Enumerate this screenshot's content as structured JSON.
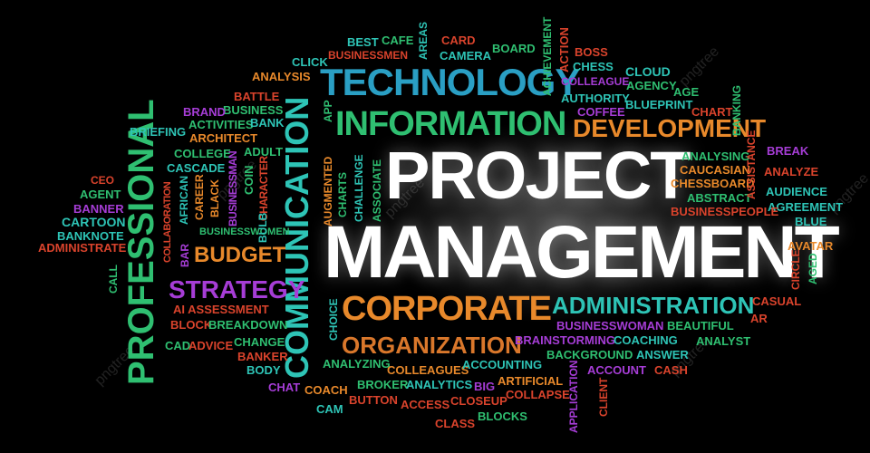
{
  "colors": {
    "background": "#000000",
    "teal": "#2ec4b6",
    "green": "#2fbf71",
    "orange": "#e8892b",
    "red": "#d9432c",
    "purple": "#a63dd6",
    "blue": "#3a8bd8",
    "white": "#ffffff"
  },
  "watermark": "pngtree",
  "words": {
    "project": "PROJECT",
    "management": "MANAGEMENT",
    "technology": "TECHNOLOGY",
    "information": "INFORMATION",
    "development": "DEVELOPMENT",
    "corporate": "CORPORATE",
    "administration": "ADMINISTRATION",
    "organization": "ORGANIZATION",
    "professional": "PROFESSIONAL",
    "communication": "COMMUNICATION",
    "strategy": "STRATEGY",
    "budget": "BUDGET",
    "best": "BEST",
    "cafe": "CAFE",
    "areas": "AREAS",
    "card": "CARD",
    "board": "BOARD",
    "businessmen": "BUSINESSMEN",
    "camera": "CAMERA",
    "achievement": "ACHIEVEMENT",
    "action": "ACTION",
    "boss": "BOSS",
    "chess": "CHESS",
    "click": "CLICK",
    "analysis": "ANALYSIS",
    "cloud": "CLOUD",
    "agency": "AGENCY",
    "colleague": "COLLEAGUE",
    "authority": "AUTHORITY",
    "age": "AGE",
    "coffee": "COFFEE",
    "blueprint": "BLUEPRINT",
    "banking": "BANKING",
    "chart": "CHART",
    "battle": "BATTLE",
    "business": "BUSINESS",
    "brand": "BRAND",
    "activities": "ACTIVITIES",
    "bank": "BANK",
    "app": "APP",
    "briefing": "BRIEFING",
    "architect": "ARCHITECT",
    "college": "COLLEGE",
    "adult": "ADULT",
    "cascade": "CASCADE",
    "businessman": "BUSINESSMAN",
    "coin": "COIN",
    "character": "CHARACTER",
    "african": "AFRICAN",
    "career": "CAREER",
    "black": "BLACK",
    "businesswomen": "BUSINESSWOMEN",
    "bulb": "BULB",
    "collaboration": "COLLABORATION",
    "bar": "BAR",
    "augmented": "AUGMENTED",
    "charts": "CHARTS",
    "challenge": "CHALLENGE",
    "associate": "ASSOCIATE",
    "ceo": "CEO",
    "agent": "AGENT",
    "banner": "BANNER",
    "cartoon": "CARTOON",
    "banknote": "BANKNOTE",
    "administrate": "ADMINISTRATE",
    "call": "CALL",
    "ai_assessment": "AI ASSESSMENT",
    "block": "BLOCK",
    "breakdown": "BREAKDOWN",
    "cad": "CAD",
    "advice": "ADVICE",
    "change": "CHANGE",
    "banker": "BANKER",
    "body": "BODY",
    "chat": "CHAT",
    "coach": "COACH",
    "cam": "CAM",
    "button": "BUTTON",
    "access": "ACCESS",
    "closeup": "CLOSEUP",
    "class": "CLASS",
    "blocks": "BLOCKS",
    "choice": "CHOICE",
    "analyzing": "ANALYZING",
    "colleagues": "COLLEAGUES",
    "broker": "BROKER",
    "analytics": "ANALYTICS",
    "big": "BIG",
    "artificial": "ARTIFICIAL",
    "collapse": "COLLAPSE",
    "accounting": "ACCOUNTING",
    "application": "APPLICATION",
    "client": "CLIENT",
    "account": "ACCOUNT",
    "answer": "ANSWER",
    "cash": "CASH",
    "background": "BACKGROUND",
    "brainstorming": "BRAINSTORMING",
    "coaching": "COACHING",
    "analyst": "ANALYST",
    "businesswoman": "BUSINESSWOMAN",
    "beautiful": "BEAUTIFUL",
    "casual": "CASUAL",
    "ar": "AR",
    "avatar": "AVATAR",
    "circle": "CIRCLE",
    "aged": "AGED",
    "break": "BREAK",
    "analyze": "ANALYZE",
    "audience": "AUDIENCE",
    "agreement": "AGREEMENT",
    "blue": "BLUE",
    "analysing": "ANALYSING",
    "caucasian": "CAUCASIAN",
    "chessboard": "CHESSBOARD",
    "abstract": "ABSTRACT",
    "businesspeople": "BUSINESSPEOPLE",
    "assistance": "ASSISTANCE"
  }
}
